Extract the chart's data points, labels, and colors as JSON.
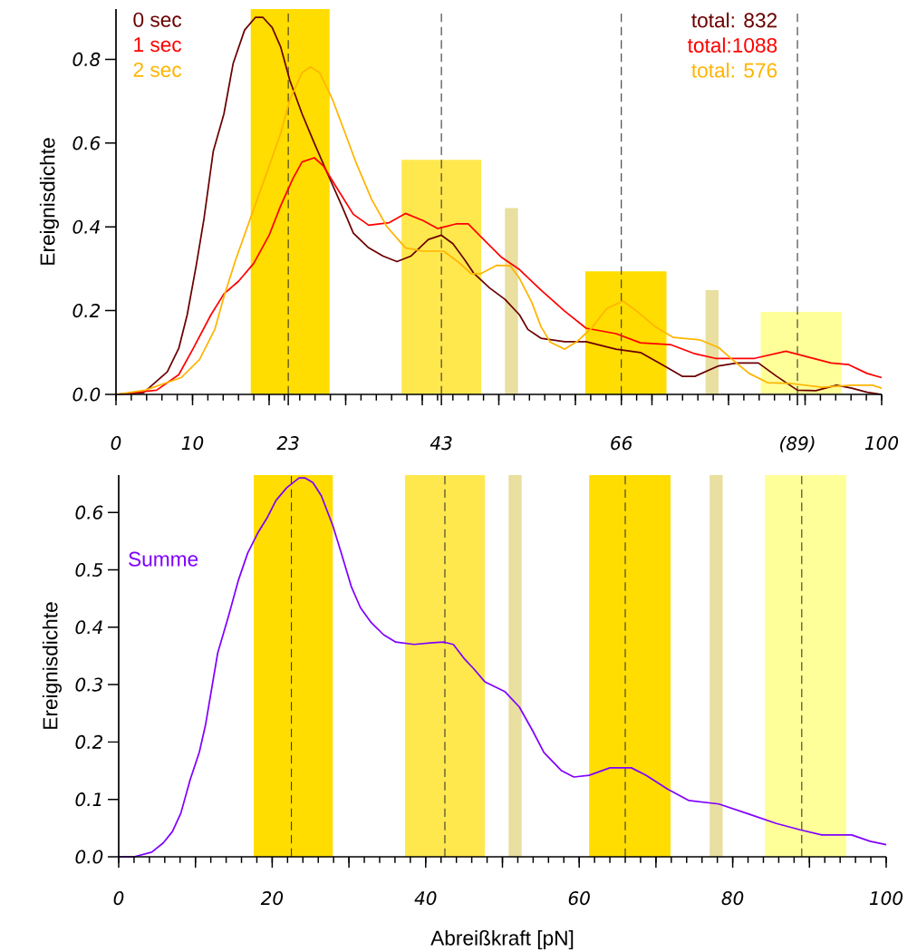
{
  "chart_data": [
    {
      "type": "line",
      "ylabel": "Ereignisdichte",
      "xlim": [
        0,
        100
      ],
      "ylim": [
        0,
        0.92
      ],
      "legend": "top left",
      "marker": "none",
      "line_style": "solid",
      "xticks": [
        0,
        10,
        {
          "value": 20,
          "label": null
        },
        {
          "value": 22.5,
          "label": "23"
        },
        {
          "value": 30,
          "label": null
        },
        {
          "value": 40,
          "label": null
        },
        {
          "value": 42.5,
          "label": "43"
        },
        {
          "value": 50,
          "label": null
        },
        {
          "value": 60,
          "label": null
        },
        66,
        {
          "value": 70,
          "label": null
        },
        {
          "value": 80,
          "label": null
        },
        {
          "value": 89,
          "label": "(89)"
        },
        {
          "value": 90,
          "label": null
        },
        100
      ],
      "yticks": [
        {
          "value": 0,
          "label": "0.0"
        },
        0.2,
        0.4,
        0.6,
        0.8
      ],
      "ref_lines": [
        {
          "axis": "x",
          "value": 22.5,
          "color": "#333333",
          "line_style": "dashed"
        },
        {
          "axis": "x",
          "value": 42.5,
          "color": "#333333",
          "line_style": "dashed"
        },
        {
          "axis": "x",
          "value": 66,
          "color": "#333333",
          "line_style": "dashed"
        },
        {
          "axis": "x",
          "value": 89,
          "color": "#333333",
          "line_style": "dashed"
        }
      ],
      "annotations": [
        "total: 832",
        "total:1088",
        "total: 576"
      ],
      "series": [
        {
          "type": "histogram",
          "bins": [
            17.6,
            27.9,
            37.3,
            47.7,
            50.8,
            52.5,
            61.3,
            71.9,
            77.0,
            78.7,
            84.2,
            94.8
          ],
          "values": [
            0.92,
            null,
            0.56,
            null,
            0.445,
            null,
            0.294,
            null,
            0.249,
            null,
            0.197
          ],
          "colors": [
            "#ffdd00",
            null,
            "#ffe84d",
            null,
            "#e8dfa0",
            null,
            "#ffdd00",
            null,
            "#e8dfa0",
            null,
            "#ffff99"
          ]
        },
        {
          "name": "0 sec",
          "color": "#6b0000",
          "x": [
            0,
            3.6,
            6.7,
            8.2,
            9.3,
            10.5,
            11.5,
            12.7,
            14.1,
            15.3,
            16.8,
            18.2,
            19.2,
            20.4,
            21.5,
            22.7,
            24.3,
            25.9,
            27.8,
            29.5,
            31.0,
            33.0,
            34.9,
            36.7,
            38.5,
            40.8,
            42.5,
            44.0,
            45.6,
            46.7,
            48.8,
            50.8,
            52.7,
            53.8,
            55.5,
            58.6,
            61.4,
            65.3,
            68.5,
            71.6,
            74.0,
            75.6,
            78.7,
            81.1,
            83.9,
            86.3,
            89.0,
            91.4,
            94.1,
            96.1,
            98.1,
            100
          ],
          "values": [
            0,
            0.004,
            0.054,
            0.11,
            0.19,
            0.31,
            0.42,
            0.58,
            0.67,
            0.79,
            0.87,
            0.9,
            0.9,
            0.876,
            0.83,
            0.75,
            0.67,
            0.6,
            0.52,
            0.45,
            0.385,
            0.35,
            0.33,
            0.317,
            0.33,
            0.37,
            0.38,
            0.36,
            0.32,
            0.29,
            0.254,
            0.227,
            0.19,
            0.155,
            0.134,
            0.126,
            0.126,
            0.108,
            0.1,
            0.068,
            0.043,
            0.043,
            0.068,
            0.075,
            0.075,
            0.043,
            0.01,
            0.009,
            0.022,
            0.015,
            0.005,
            0
          ]
        },
        {
          "name": "1 sec",
          "color": "#ff0000",
          "x": [
            0,
            5.3,
            8.2,
            10.1,
            12.4,
            14.1,
            16.0,
            18.0,
            20.0,
            21.5,
            23.1,
            24.3,
            25.9,
            27.1,
            28.6,
            31.0,
            33.0,
            35.7,
            37.8,
            40.1,
            42.0,
            44.4,
            46.0,
            47.9,
            50.3,
            52.7,
            55.5,
            58.6,
            61.4,
            65.3,
            68.5,
            72.4,
            75.6,
            78.3,
            83.4,
            87.5,
            90.2,
            93.4,
            95.7,
            98.1,
            100
          ],
          "values": [
            0,
            0.01,
            0.047,
            0.11,
            0.19,
            0.24,
            0.27,
            0.313,
            0.38,
            0.45,
            0.515,
            0.555,
            0.565,
            0.545,
            0.5,
            0.43,
            0.404,
            0.41,
            0.432,
            0.415,
            0.396,
            0.407,
            0.407,
            0.372,
            0.328,
            0.298,
            0.249,
            0.199,
            0.158,
            0.145,
            0.123,
            0.119,
            0.097,
            0.086,
            0.086,
            0.103,
            0.09,
            0.075,
            0.071,
            0.05,
            0.04
          ]
        },
        {
          "name": "2 sec",
          "color": "#ffb400",
          "x": [
            0,
            3.8,
            8.5,
            10.9,
            12.9,
            14.1,
            15.6,
            18.0,
            20.0,
            21.5,
            22.7,
            24.3,
            25.4,
            26.6,
            28.3,
            29.8,
            31.4,
            33.4,
            35.4,
            37.8,
            40.1,
            42.8,
            44.9,
            46.4,
            47.6,
            49.7,
            51.5,
            52.7,
            54.3,
            55.5,
            56.7,
            58.6,
            60.2,
            62.1,
            64.1,
            66.2,
            68.0,
            70.4,
            72.8,
            76.3,
            78.7,
            80.7,
            82.7,
            85.1,
            88.2,
            92.2,
            96.1,
            98.8,
            100
          ],
          "values": [
            0,
            0.01,
            0.04,
            0.083,
            0.155,
            0.233,
            0.32,
            0.443,
            0.545,
            0.623,
            0.703,
            0.768,
            0.782,
            0.768,
            0.703,
            0.63,
            0.551,
            0.465,
            0.4,
            0.35,
            0.342,
            0.342,
            0.313,
            0.288,
            0.288,
            0.308,
            0.307,
            0.277,
            0.22,
            0.162,
            0.125,
            0.108,
            0.126,
            0.158,
            0.205,
            0.223,
            0.199,
            0.162,
            0.136,
            0.13,
            0.112,
            0.08,
            0.05,
            0.028,
            0.026,
            0.017,
            0.022,
            0.022,
            0.015
          ]
        }
      ]
    },
    {
      "type": "line",
      "xlabel": "Abreißkraft [pN]",
      "ylabel": "Ereignisdichte",
      "xlim": [
        0,
        100
      ],
      "ylim": [
        0,
        0.665
      ],
      "legend": false,
      "marker": "none",
      "line_style": "solid",
      "xticks": [
        0,
        {
          "value": 10,
          "label": null
        },
        20,
        {
          "value": 30,
          "label": null
        },
        40,
        {
          "value": 50,
          "label": null
        },
        60,
        {
          "value": 70,
          "label": null
        },
        80,
        {
          "value": 90,
          "label": null
        },
        100
      ],
      "yticks": [
        {
          "value": 0,
          "label": "0.0"
        },
        0.1,
        0.2,
        0.3,
        0.4,
        0.5,
        0.6
      ],
      "bands": [
        {
          "axis": "x",
          "from": 17.6,
          "to": 27.9,
          "color": "#ffdd00"
        },
        {
          "axis": "x",
          "from": 37.3,
          "to": 47.7,
          "color": "#ffe84d"
        },
        {
          "axis": "x",
          "from": 50.8,
          "to": 52.5,
          "color": "#e8dfa0"
        },
        {
          "axis": "x",
          "from": 61.3,
          "to": 71.9,
          "color": "#ffdd00"
        },
        {
          "axis": "x",
          "from": 77.0,
          "to": 78.7,
          "color": "#e8dfa0"
        },
        {
          "axis": "x",
          "from": 84.2,
          "to": 94.8,
          "color": "#ffff99"
        }
      ],
      "ref_lines": [
        {
          "axis": "x",
          "value": 22.5,
          "color": "#333333",
          "line_style": "dashed"
        },
        {
          "axis": "x",
          "value": 42.5,
          "color": "#333333",
          "line_style": "dashed"
        },
        {
          "axis": "x",
          "value": 66,
          "color": "#333333",
          "line_style": "dashed"
        },
        {
          "axis": "x",
          "value": 89,
          "color": "#333333",
          "line_style": "dashed"
        }
      ],
      "series": [
        {
          "name": "Summe",
          "color": "#8000ff",
          "x": [
            0,
            2.0,
            4.3,
            5.8,
            7.0,
            8.1,
            9.3,
            10.5,
            11.3,
            12.9,
            14.3,
            15.6,
            16.8,
            18.2,
            19.4,
            20.5,
            21.9,
            23.5,
            24.3,
            25.3,
            26.4,
            27.9,
            29.0,
            30.3,
            31.5,
            32.9,
            34.5,
            36.1,
            38.5,
            40.9,
            42.4,
            43.6,
            45.1,
            46.3,
            47.7,
            50.3,
            52.2,
            54.0,
            55.4,
            57.7,
            59.3,
            61.3,
            64.0,
            66.8,
            68.7,
            71.5,
            74.3,
            78.2,
            82.2,
            85.7,
            88.8,
            91.6,
            95.5,
            97.9,
            100
          ],
          "values": [
            0,
            0,
            0.008,
            0.024,
            0.044,
            0.076,
            0.134,
            0.182,
            0.229,
            0.355,
            0.419,
            0.482,
            0.529,
            0.566,
            0.592,
            0.621,
            0.643,
            0.66,
            0.66,
            0.652,
            0.629,
            0.577,
            0.529,
            0.471,
            0.434,
            0.408,
            0.387,
            0.374,
            0.37,
            0.373,
            0.374,
            0.37,
            0.344,
            0.327,
            0.305,
            0.288,
            0.261,
            0.218,
            0.182,
            0.15,
            0.139,
            0.142,
            0.155,
            0.155,
            0.142,
            0.118,
            0.098,
            0.092,
            0.074,
            0.058,
            0.047,
            0.038,
            0.038,
            0.027,
            0.021
          ]
        }
      ]
    }
  ]
}
